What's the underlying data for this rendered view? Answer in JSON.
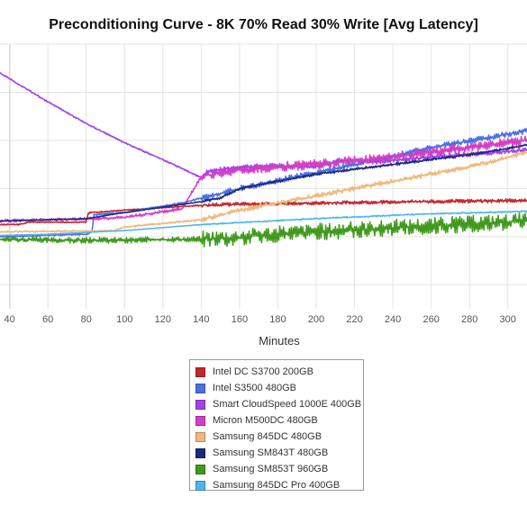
{
  "chart_data": {
    "type": "line",
    "title": "Preconditioning Curve - 8K 70% Read 30% Write [Avg Latency]",
    "xlabel": "Minutes",
    "ylabel": "",
    "xlim": [
      35,
      310
    ],
    "ylim": [
      0,
      11
    ],
    "x_ticks": [
      40,
      60,
      80,
      100,
      120,
      140,
      160,
      180,
      200,
      220,
      240,
      260,
      280,
      300
    ],
    "y_gridlines": [
      1,
      3,
      5,
      7,
      9,
      11
    ],
    "grid": true,
    "legend_position": "bottom-center",
    "series": [
      {
        "name": "Intel DC S3700 200GB",
        "color": "#c0282e",
        "x": [
          35,
          45,
          50,
          60,
          80,
          81,
          82,
          100,
          140,
          160,
          200,
          250,
          310
        ],
        "y": [
          3.5,
          3.5,
          3.6,
          3.6,
          3.6,
          3.95,
          4.0,
          4.1,
          4.3,
          4.35,
          4.4,
          4.45,
          4.5
        ],
        "noise": 0.08
      },
      {
        "name": "Intel S3500 480GB",
        "color": "#4a6fe0",
        "x": [
          35,
          55,
          80,
          83,
          84,
          90,
          100,
          130,
          160,
          190,
          220,
          260,
          310
        ],
        "y": [
          3.0,
          3.05,
          3.1,
          3.2,
          3.9,
          3.95,
          4.0,
          4.4,
          5.0,
          5.5,
          6.0,
          6.7,
          7.4
        ],
        "noise": 0.12
      },
      {
        "name": "Smart CloudSpeed 1000E 400GB",
        "color": "#a042e8",
        "x": [
          35,
          60,
          80,
          100,
          120,
          140,
          143,
          160,
          180,
          200,
          213,
          230,
          260,
          310
        ],
        "y": [
          9.8,
          8.6,
          7.7,
          6.9,
          6.2,
          5.45,
          5.7,
          5.9,
          5.95,
          5.9,
          6.2,
          6.1,
          6.3,
          6.6
        ],
        "noise": 0.1
      },
      {
        "name": "Micron M500DC 480GB",
        "color": "#d23ec6",
        "x": [
          35,
          60,
          85,
          100,
          130,
          140,
          160,
          200,
          240,
          280,
          310
        ],
        "y": [
          3.65,
          3.7,
          3.75,
          3.8,
          4.15,
          5.5,
          5.8,
          6.0,
          6.3,
          6.7,
          7.0
        ],
        "noise": 0.2
      },
      {
        "name": "Samsung 845DC 480GB",
        "color": "#f0b87a",
        "x": [
          35,
          95,
          100,
          140,
          160,
          200,
          240,
          280,
          310
        ],
        "y": [
          3.2,
          3.25,
          3.4,
          3.7,
          4.1,
          4.7,
          5.3,
          5.9,
          6.5
        ],
        "noise": 0.1
      },
      {
        "name": "Samsung SM843T 480GB",
        "color": "#1c2a80",
        "x": [
          35,
          60,
          80,
          100,
          140,
          150,
          160,
          200,
          240,
          280,
          310
        ],
        "y": [
          3.65,
          3.7,
          3.75,
          4.0,
          4.45,
          4.6,
          5.0,
          5.6,
          6.0,
          6.4,
          6.8
        ],
        "noise": 0.06
      },
      {
        "name": "Samsung SM853T 960GB",
        "color": "#3f9a1d",
        "x": [
          35,
          60,
          100,
          140,
          160,
          162,
          200,
          260,
          310
        ],
        "y": [
          2.9,
          2.85,
          2.85,
          2.9,
          2.95,
          3.0,
          3.2,
          3.45,
          3.65
        ],
        "noise": 0.35
      },
      {
        "name": "Samsung 845DC Pro 400GB",
        "color": "#4db6ee",
        "x": [
          35,
          60,
          100,
          140,
          200,
          260,
          310
        ],
        "y": [
          3.05,
          3.1,
          3.25,
          3.5,
          3.75,
          3.95,
          4.05
        ],
        "noise": 0.03
      }
    ]
  }
}
